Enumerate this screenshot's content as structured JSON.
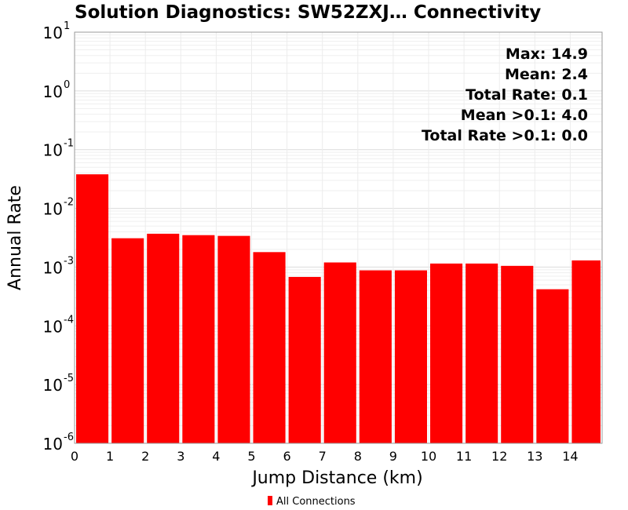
{
  "chart_data": {
    "type": "bar",
    "title": "Solution Diagnostics: SW52ZXJ… Connectivity",
    "xlabel": "Jump Distance (km)",
    "ylabel": "Annual Rate",
    "yscale": "log",
    "ylim": [
      1e-06,
      10
    ],
    "xlim": [
      0,
      14.9
    ],
    "x_ticks": [
      "0",
      "1",
      "2",
      "3",
      "4",
      "5",
      "6",
      "7",
      "8",
      "9",
      "10",
      "11",
      "12",
      "13",
      "14"
    ],
    "y_ticks": [
      {
        "base": "10",
        "exp": "1",
        "value": 10
      },
      {
        "base": "10",
        "exp": "0",
        "value": 1
      },
      {
        "base": "10",
        "exp": "-1",
        "value": 0.1
      },
      {
        "base": "10",
        "exp": "-2",
        "value": 0.01
      },
      {
        "base": "10",
        "exp": "-3",
        "value": 0.001
      },
      {
        "base": "10",
        "exp": "-4",
        "value": 0.0001
      },
      {
        "base": "10",
        "exp": "-5",
        "value": 1e-05
      },
      {
        "base": "10",
        "exp": "-6",
        "value": 1e-06
      }
    ],
    "grid": true,
    "legend_placement": "bottom-center",
    "series": [
      {
        "name": "All Connections",
        "color": "#ff0000",
        "bins": [
          {
            "x0": 0,
            "x1": 1,
            "value": 0.038
          },
          {
            "x0": 1,
            "x1": 2,
            "value": 0.0031
          },
          {
            "x0": 2,
            "x1": 3,
            "value": 0.0037
          },
          {
            "x0": 3,
            "x1": 4,
            "value": 0.0035
          },
          {
            "x0": 4,
            "x1": 5,
            "value": 0.0034
          },
          {
            "x0": 5,
            "x1": 6,
            "value": 0.0018
          },
          {
            "x0": 6,
            "x1": 7,
            "value": 0.00068
          },
          {
            "x0": 7,
            "x1": 8,
            "value": 0.0012
          },
          {
            "x0": 8,
            "x1": 9,
            "value": 0.00088
          },
          {
            "x0": 9,
            "x1": 10,
            "value": 0.00088
          },
          {
            "x0": 10,
            "x1": 11,
            "value": 0.00115
          },
          {
            "x0": 11,
            "x1": 12,
            "value": 0.00115
          },
          {
            "x0": 12,
            "x1": 13,
            "value": 0.00105
          },
          {
            "x0": 13,
            "x1": 14,
            "value": 0.00042
          },
          {
            "x0": 14,
            "x1": 14.9,
            "value": 0.0013
          }
        ]
      }
    ],
    "annotations": [
      "Max: 14.9",
      "Mean: 2.4",
      "Total Rate: 0.1",
      "Mean >0.1: 4.0",
      "Total Rate >0.1: 0.0"
    ]
  }
}
